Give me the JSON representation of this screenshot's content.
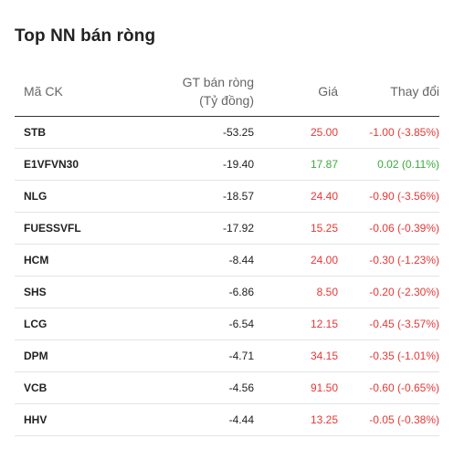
{
  "widget": {
    "title": "Top NN bán ròng",
    "columns": {
      "symbol": "Mã CK",
      "value_line1": "GT bán ròng",
      "value_line2": "(Tỷ đồng)",
      "price": "Giá",
      "change": "Thay đổi"
    },
    "rows": [
      {
        "symbol": "STB",
        "value": "-53.25",
        "price": "25.00",
        "change": "-1.00 (-3.85%)",
        "trend": "down"
      },
      {
        "symbol": "E1VFVN30",
        "value": "-19.40",
        "price": "17.87",
        "change": "0.02 (0.11%)",
        "trend": "up"
      },
      {
        "symbol": "NLG",
        "value": "-18.57",
        "price": "24.40",
        "change": "-0.90 (-3.56%)",
        "trend": "down"
      },
      {
        "symbol": "FUESSVFL",
        "value": "-17.92",
        "price": "15.25",
        "change": "-0.06 (-0.39%)",
        "trend": "down"
      },
      {
        "symbol": "HCM",
        "value": "-8.44",
        "price": "24.00",
        "change": "-0.30 (-1.23%)",
        "trend": "down"
      },
      {
        "symbol": "SHS",
        "value": "-6.86",
        "price": "8.50",
        "change": "-0.20 (-2.30%)",
        "trend": "down"
      },
      {
        "symbol": "LCG",
        "value": "-6.54",
        "price": "12.15",
        "change": "-0.45 (-3.57%)",
        "trend": "down"
      },
      {
        "symbol": "DPM",
        "value": "-4.71",
        "price": "34.15",
        "change": "-0.35 (-1.01%)",
        "trend": "down"
      },
      {
        "symbol": "VCB",
        "value": "-4.56",
        "price": "91.50",
        "change": "-0.60 (-0.65%)",
        "trend": "down"
      },
      {
        "symbol": "HHV",
        "value": "-4.44",
        "price": "13.25",
        "change": "-0.05 (-0.38%)",
        "trend": "down"
      }
    ]
  },
  "colors": {
    "up": "#3cab3c",
    "down": "#e53935",
    "header_text": "#666666",
    "header_rule": "#333333",
    "row_rule": "#e4e4e4"
  }
}
